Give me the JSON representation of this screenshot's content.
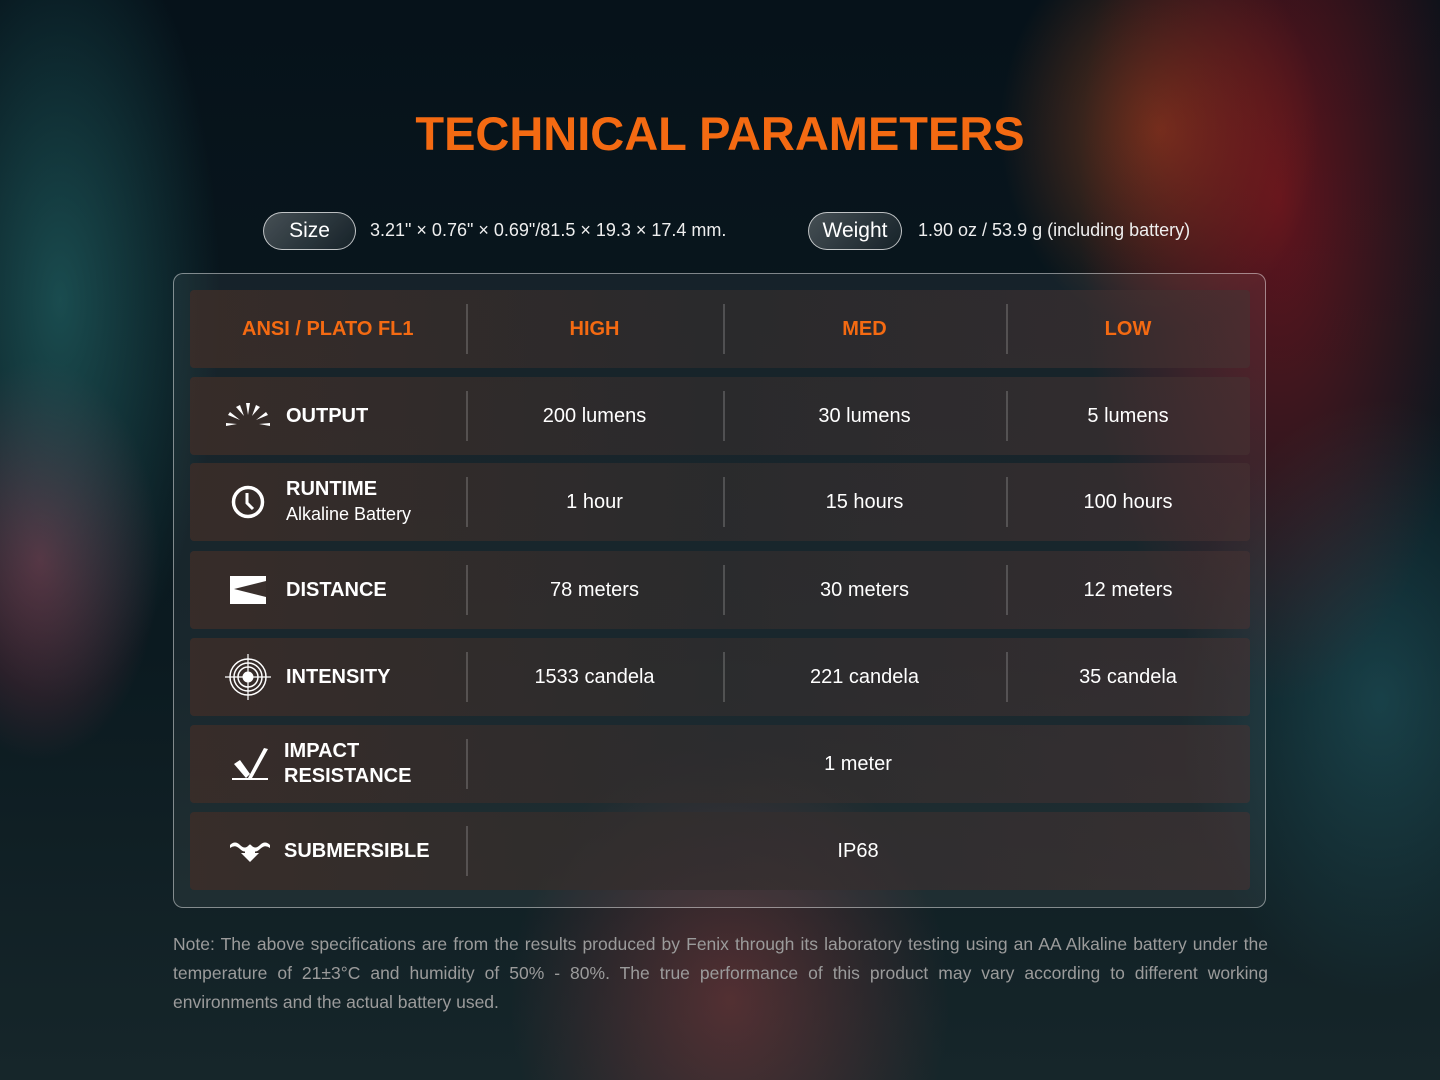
{
  "title": "TECHNICAL PARAMETERS",
  "size": {
    "label": "Size",
    "value": "3.21\" × 0.76\" × 0.69\"/81.5 × 19.3 × 17.4 mm."
  },
  "weight": {
    "label": "Weight",
    "value": "1.90 oz / 53.9 g (including battery)"
  },
  "table": {
    "headers": [
      "ANSI / PLATO FL1",
      "HIGH",
      "MED",
      "LOW"
    ],
    "rows": [
      {
        "icon": "sun-rays-icon",
        "label": "OUTPUT",
        "values": [
          "200 lumens",
          "30 lumens",
          "5 lumens"
        ]
      },
      {
        "icon": "clock-icon",
        "label": "RUNTIME",
        "sublabel": "Alkaline Battery",
        "values": [
          "1 hour",
          "15 hours",
          "100 hours"
        ]
      },
      {
        "icon": "distance-beam-icon",
        "label": "DISTANCE",
        "values": [
          "78 meters",
          "30 meters",
          "12 meters"
        ]
      },
      {
        "icon": "target-icon",
        "label": "INTENSITY",
        "values": [
          "1533 candela",
          "221 candela",
          "35 candela"
        ]
      },
      {
        "icon": "impact-icon",
        "label": "IMPACT",
        "label2": "RESISTANCE",
        "value": "1 meter"
      },
      {
        "icon": "submersible-icon",
        "label": "SUBMERSIBLE",
        "value": "IP68"
      }
    ]
  },
  "note": "Note: The above specifications are from the results produced by Fenix through its laboratory testing using an AA Alkaline battery under the temperature of 21±3°C and humidity of 50% - 80%. The true performance of this product may vary according to different working environments and the actual battery used.",
  "colors": {
    "accent": "#f46a12"
  }
}
